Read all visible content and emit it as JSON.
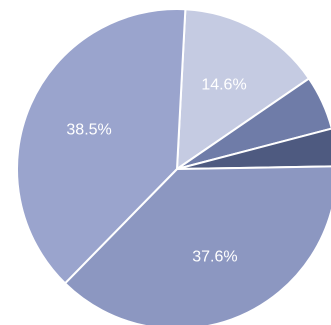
{
  "chart_data": {
    "type": "pie",
    "title": "",
    "legend": "none",
    "values": [
      14.6,
      5.5,
      3.8,
      37.6,
      38.5
    ],
    "labels": [
      "14.6%",
      "",
      "",
      "37.6%",
      "38.5%"
    ],
    "colors": [
      "#c5cbe2",
      "#6f7ca8",
      "#4e5a80",
      "#8c97c1",
      "#9aa4cd"
    ]
  }
}
